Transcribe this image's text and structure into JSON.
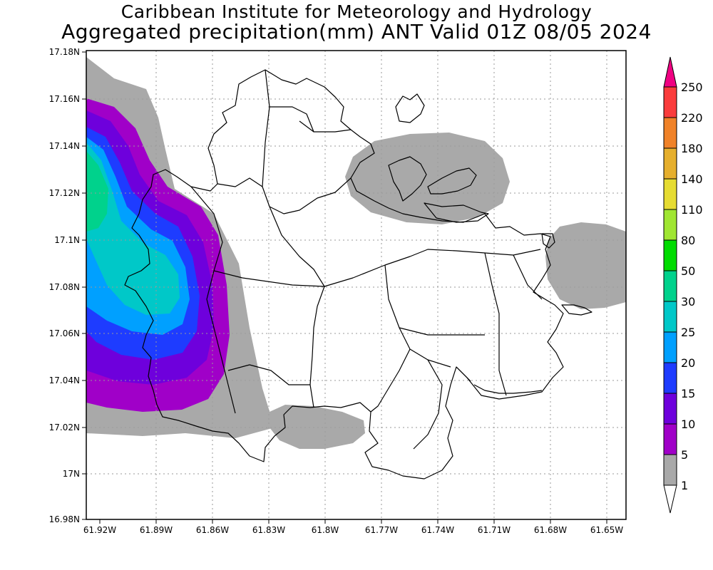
{
  "header": {
    "title": "Caribbean Institute for Meteorology and Hydrology",
    "subtitle": "Aggregated precipitation(mm) ANT Valid 01Z 08/05 2024"
  },
  "map": {
    "lat_ticks": [
      "17.18N",
      "17.16N",
      "17.14N",
      "17.12N",
      "17.1N",
      "17.08N",
      "17.06N",
      "17.04N",
      "17.02N",
      "17N",
      "16.98N"
    ],
    "lon_ticks": [
      "61.92W",
      "61.89W",
      "61.86W",
      "61.83W",
      "61.8W",
      "61.77W",
      "61.74W",
      "61.71W",
      "61.68W",
      "61.65W"
    ]
  },
  "legend": {
    "levels": [
      "1",
      "5",
      "10",
      "15",
      "20",
      "25",
      "30",
      "50",
      "80",
      "110",
      "140",
      "180",
      "220",
      "250"
    ],
    "colors": {
      "gray": "#a9a9a9",
      "purple": "#a000c8",
      "violet": "#6e00dc",
      "blue": "#1e3cff",
      "skyblue": "#00a0ff",
      "cyan": "#00c8c8",
      "teal": "#00d28c",
      "green": "#00dc00",
      "lightgreen": "#a0e632",
      "yellow": "#e6dc32",
      "gold": "#e6af2d",
      "orange": "#f08228",
      "red": "#fa3c3c",
      "crimson": "#f00082"
    }
  }
}
